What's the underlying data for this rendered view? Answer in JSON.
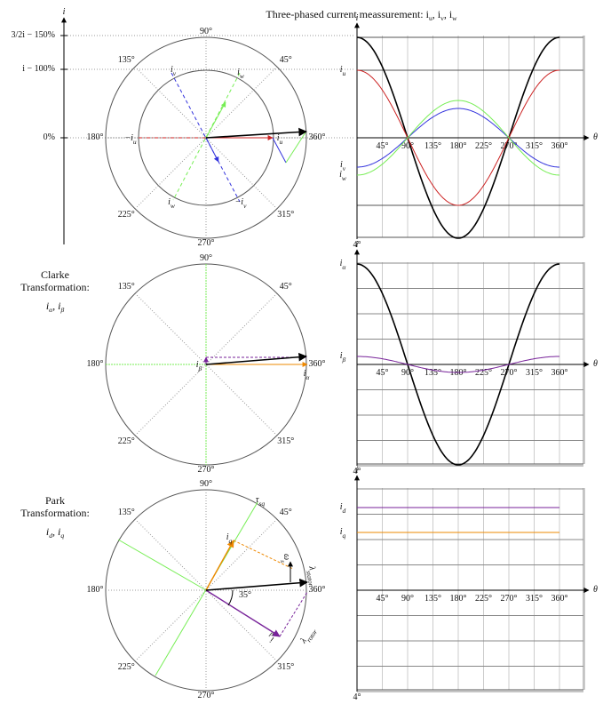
{
  "title": "Three-phased current meassurement: i_u, i_v, i_w",
  "left_axis": {
    "label": "i",
    "ticks": [
      "3/2i − 150%",
      "i − 100%",
      "0%"
    ]
  },
  "panels": [
    {
      "circle_angles": [
        "45°",
        "90°",
        "135°",
        "180°",
        "225°",
        "270°",
        "315°",
        "360°"
      ],
      "vector_labels": [
        "i_u",
        "−i_u",
        "i_v",
        "i_w",
        "−i_v",
        "i_w"
      ],
      "plot": {
        "y_label": "i",
        "x_label": "θ",
        "bottom_label": "4°",
        "ticks": [
          "45°",
          "90°",
          "135°",
          "180°",
          "225°",
          "270°",
          "315°",
          "360°"
        ],
        "curve_labels": [
          "i_u",
          "i_v",
          "i_w"
        ]
      }
    },
    {
      "heading": "Clarke Transformation:",
      "subheading": "i_α, i_β",
      "circle_angles": [
        "45°",
        "90°",
        "135°",
        "180°",
        "225°",
        "270°",
        "315°",
        "360°"
      ],
      "vector_labels": [
        "i_β",
        "i_α"
      ],
      "plot": {
        "y_label": "i",
        "x_label": "θ",
        "bottom_label": "4°",
        "ticks": [
          "45°",
          "90°",
          "135°",
          "180°",
          "225°",
          "270°",
          "315°",
          "360°"
        ],
        "curve_labels": [
          "i_α",
          "i_β"
        ]
      }
    },
    {
      "heading": "Park Transformation:",
      "subheading": "i_d, i_q",
      "circle_angles": [
        "45°",
        "90°",
        "135°",
        "180°",
        "225°",
        "270°",
        "315°",
        "360°"
      ],
      "vector_labels": [
        "τ_sq",
        "i_q",
        "ω_s",
        "λ_stator",
        "35°",
        "i_d",
        "λ_rotor"
      ],
      "plot": {
        "y_label": "i",
        "x_label": "θ",
        "bottom_label": "4°",
        "ticks": [
          "45°",
          "90°",
          "135°",
          "180°",
          "225°",
          "270°",
          "315°",
          "360°"
        ],
        "curve_labels": [
          "i_d",
          "i_q"
        ]
      }
    }
  ]
}
